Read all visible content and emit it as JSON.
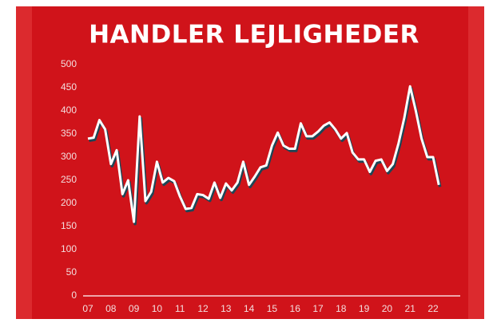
{
  "chart_data": {
    "type": "line",
    "title": "HANDLER LEJLIGHEDER",
    "categories": [
      "07",
      null,
      null,
      null,
      "08",
      null,
      null,
      null,
      "09",
      null,
      null,
      null,
      "10",
      null,
      null,
      null,
      "11",
      null,
      null,
      null,
      "12",
      null,
      null,
      null,
      "13",
      null,
      null,
      null,
      "14",
      null,
      null,
      null,
      "15",
      null,
      null,
      null,
      "16",
      null,
      null,
      null,
      "17",
      null,
      null,
      null,
      "18",
      null,
      null,
      null,
      "19",
      null,
      null,
      null,
      "20",
      null,
      null,
      null,
      "21",
      null,
      null,
      null,
      "22",
      null
    ],
    "values": [
      340,
      342,
      380,
      360,
      285,
      315,
      220,
      250,
      160,
      388,
      205,
      225,
      290,
      245,
      255,
      248,
      215,
      188,
      190,
      220,
      218,
      210,
      245,
      212,
      243,
      228,
      245,
      290,
      240,
      258,
      278,
      282,
      325,
      353,
      325,
      318,
      318,
      373,
      345,
      345,
      355,
      368,
      375,
      360,
      340,
      352,
      310,
      295,
      295,
      268,
      292,
      295,
      270,
      285,
      330,
      385,
      453,
      400,
      340,
      300,
      300,
      240
    ],
    "color": "#ffffff",
    "ylim": [
      0,
      500
    ],
    "yticks": [
      0,
      50,
      100,
      150,
      200,
      250,
      300,
      350,
      400,
      450,
      500
    ]
  }
}
